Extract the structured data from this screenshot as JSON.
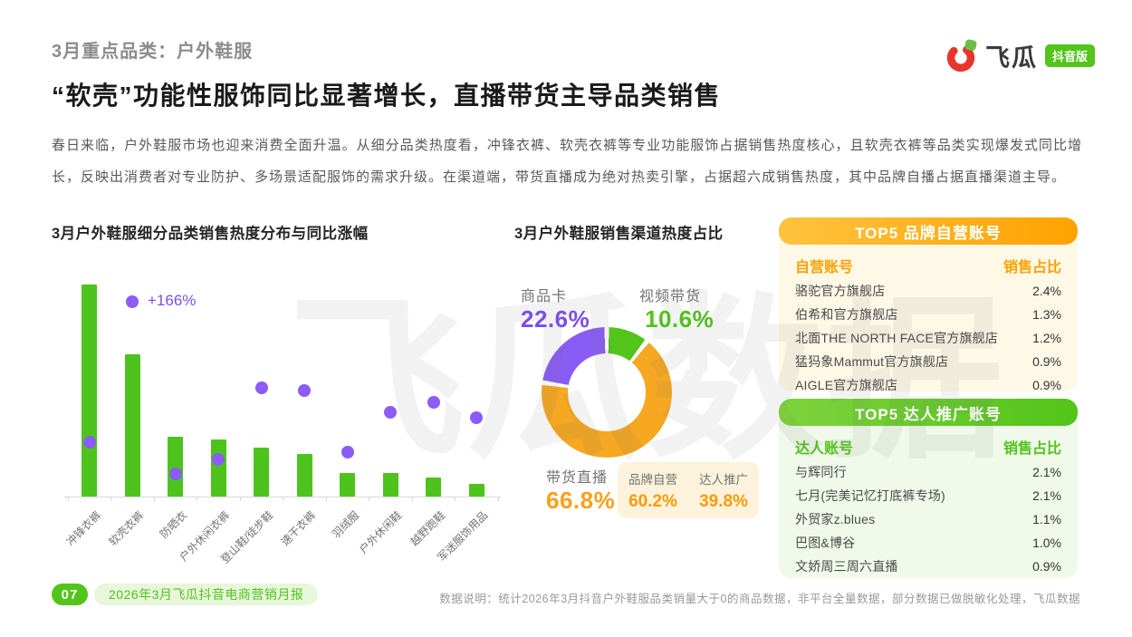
{
  "header": {
    "category_label": "3月重点品类：户外鞋服",
    "title": "“软壳”功能性服饰同比显著增长，直播带货主导品类销售",
    "logo_text": "飞瓜",
    "logo_badge": "抖音版"
  },
  "intro": "春日来临，户外鞋服市场也迎来消费全面升温。从细分品类热度看，冲锋衣裤、软壳衣裤等专业功能服饰占据销售热度核心，且软壳衣裤等品类实现爆发式同比增长，反映出消费者对专业防护、多场景适配服饰的需求升级。在渠道端，带货直播成为绝对热卖引擎，占据超六成销售热度，其中品牌自播占据直播渠道主导。",
  "colors": {
    "bar_green": "#4ec31e",
    "dot_purple": "#8b5cf6",
    "donut_purple": "#8a5cf6",
    "donut_green": "#52c41a",
    "donut_orange": "#f6a822",
    "brand_header_orange": "#ffa200",
    "talent_header_green": "#52c41a",
    "footer_green": "#52c41a"
  },
  "chart_data": [
    {
      "type": "bar",
      "title": "3月户外鞋服细分品类销售热度分布与同比涨幅",
      "categories": [
        "冲锋衣裤",
        "软壳衣裤",
        "防晒衣",
        "户外休闲衣裤",
        "登山鞋/徒步鞋",
        "速干衣裤",
        "羽绒服",
        "户外休闲鞋",
        "越野跑鞋",
        "军迷服饰用品"
      ],
      "series": [
        {
          "name": "销售热度",
          "type": "bar",
          "color": "#4ec31e",
          "unit": "relative-index",
          "values": [
            100,
            67,
            28,
            27,
            23,
            20,
            11,
            11,
            9,
            6
          ]
        },
        {
          "name": "同比涨幅",
          "type": "scatter",
          "color": "#8b5cf6",
          "unit": "%",
          "values": [
            46,
            166,
            19,
            32,
            93,
            90,
            38,
            72,
            80,
            67
          ],
          "note": "values estimated from dot positions; only the +166% point carries a data label"
        }
      ],
      "highlight_index": 1,
      "highlight_label": "+166%",
      "axes": {
        "y_axis_visible": false,
        "x_labels_rotated_deg": 45,
        "grid": false
      }
    },
    {
      "type": "pie",
      "title": "3月户外鞋服销售渠道热度占比",
      "donut": true,
      "segments": [
        {
          "label": "视频带货",
          "value": 10.6,
          "text": "10.6%",
          "color": "#52c41a"
        },
        {
          "label": "带货直播",
          "value": 66.8,
          "text": "66.8%",
          "color": "#f6a822"
        },
        {
          "label": "商品卡",
          "value": 22.6,
          "text": "22.6%",
          "color": "#8a5cf6"
        }
      ],
      "breakdown": [
        {
          "label": "品牌自营",
          "value": 60.2,
          "text": "60.2%"
        },
        {
          "label": "达人推广",
          "value": 39.8,
          "text": "39.8%"
        }
      ],
      "legend_position": "around-chart"
    }
  ],
  "tables": {
    "brand": {
      "header_title": "TOP5 品牌自营账号",
      "col_account": "自营账号",
      "col_share": "销售占比",
      "rows": [
        {
          "name": "骆驼官方旗舰店",
          "value": "2.4%"
        },
        {
          "name": "伯希和官方旗舰店",
          "value": "1.3%"
        },
        {
          "name": "北面THE NORTH FACE官方旗舰店",
          "value": "1.2%"
        },
        {
          "name": "猛犸象Mammut官方旗舰店",
          "value": "0.9%"
        },
        {
          "name": "AIGLE官方旗舰店",
          "value": "0.9%"
        }
      ]
    },
    "talent": {
      "header_title": "TOP5 达人推广账号",
      "col_account": "达人账号",
      "col_share": "销售占比",
      "rows": [
        {
          "name": "与辉同行",
          "value": "2.1%"
        },
        {
          "name": "七月(完美记忆打底裤专场)",
          "value": "2.1%"
        },
        {
          "name": "外贸家z.blues",
          "value": "1.1%"
        },
        {
          "name": "巴图&博谷",
          "value": "1.0%"
        },
        {
          "name": "文娇周三周六直播",
          "value": "0.9%"
        }
      ]
    }
  },
  "footer": {
    "page_number": "07",
    "report_label": "2026年3月飞瓜抖音电商营销月报",
    "data_note": "数据说明：统计2026年3月抖音户外鞋服品类销量大于0的商品数据，非平台全量数据，部分数据已做脱敏化处理，飞瓜数据"
  },
  "watermark": "飞瓜数据"
}
